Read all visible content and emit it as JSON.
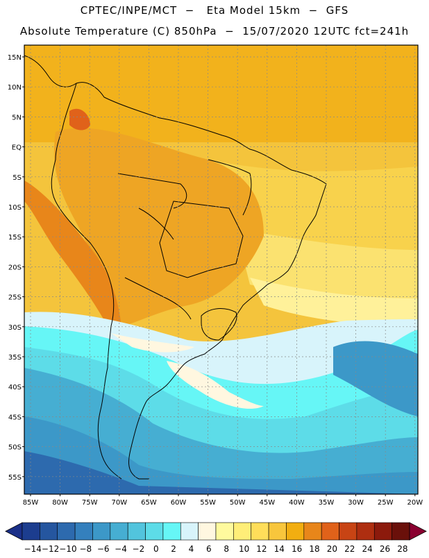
{
  "header": {
    "line1": "CPTEC/INPE/MCT  −   Eta Model 15km  −  GFS",
    "line2": "Absolute Temperature (C) 850hPa  −  15/07/2020 12UTC fct=241h"
  },
  "map": {
    "lat_labels": [
      "15N",
      "10N",
      "5N",
      "EQ",
      "5S",
      "10S",
      "15S",
      "20S",
      "25S",
      "30S",
      "35S",
      "40S",
      "45S",
      "50S",
      "55S"
    ],
    "lon_labels": [
      "85W",
      "80W",
      "75W",
      "70W",
      "65W",
      "60W",
      "55W",
      "50W",
      "45W",
      "40W",
      "35W",
      "30W",
      "25W",
      "20W"
    ]
  },
  "colorbar": {
    "labels": [
      "−14",
      "−12",
      "−10",
      "−8",
      "−6",
      "−4",
      "−2",
      "0",
      "2",
      "4",
      "6",
      "8",
      "10",
      "12",
      "14",
      "16",
      "18",
      "20",
      "22",
      "24",
      "26",
      "28"
    ],
    "colors": [
      "#1c3d8f",
      "#25569f",
      "#2d6aae",
      "#3480bd",
      "#3c98c8",
      "#46aed2",
      "#52c4dd",
      "#5ddce8",
      "#66f6f6",
      "#d8f4fb",
      "#fff7e0",
      "#fffa9e",
      "#ffee78",
      "#ffde5a",
      "#f8c63c",
      "#f2ae10",
      "#e8861a",
      "#e0621a",
      "#c84414",
      "#ae2e10",
      "#8c1a0c",
      "#6a100a"
    ],
    "under_color": "#1a2f88",
    "over_color": "#8a0030"
  }
}
